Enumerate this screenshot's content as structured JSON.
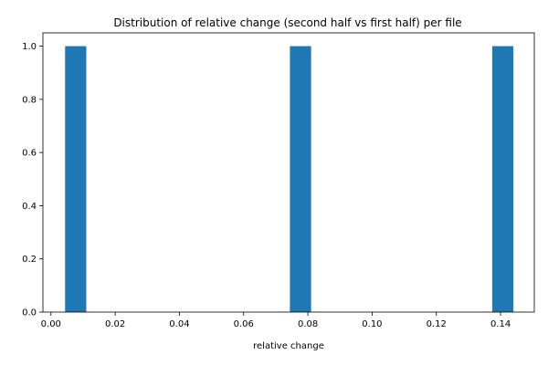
{
  "chart_data": {
    "type": "bar",
    "title": "Distribution of relative change (second half vs first half) per file",
    "xlabel": "relative change",
    "ylabel": "",
    "xlim": [
      -0.0025,
      0.1505
    ],
    "ylim": [
      0,
      1.05
    ],
    "x_ticks": [
      "0.00",
      "0.02",
      "0.04",
      "0.06",
      "0.08",
      "0.10",
      "0.12",
      "0.14"
    ],
    "y_ticks": [
      "0.0",
      "0.2",
      "0.4",
      "0.6",
      "0.8",
      "1.0"
    ],
    "grid": false,
    "color": "#1f77b4",
    "bins": [
      {
        "start": 0.0044,
        "end": 0.011,
        "count": 1
      },
      {
        "start": 0.0744,
        "end": 0.081,
        "count": 1
      },
      {
        "start": 0.1374,
        "end": 0.144,
        "count": 1
      }
    ]
  }
}
